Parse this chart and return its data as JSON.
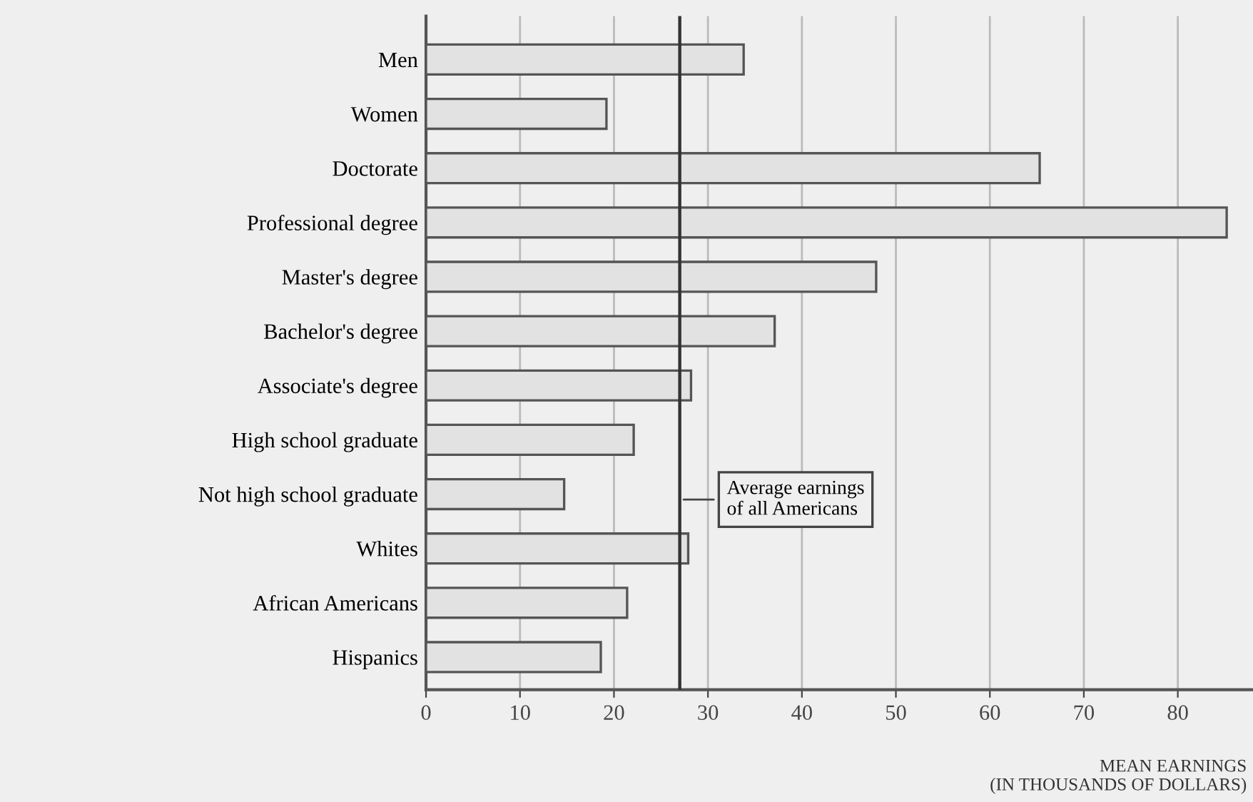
{
  "chart_data": {
    "type": "bar",
    "orientation": "horizontal",
    "xlabel": "MEAN EARNINGS\n(IN THOUSANDS OF DOLLARS)",
    "categories": [
      "Men",
      "Women",
      "Doctorate",
      "Professional degree",
      "Master's degree",
      "Bachelor's degree",
      "Associate's degree",
      "High school graduate",
      "Not high school graduate",
      "Whites",
      "African Americans",
      "Hispanics"
    ],
    "values": [
      33.8,
      19.2,
      65.3,
      85.2,
      47.9,
      37.1,
      28.2,
      22.1,
      14.7,
      27.9,
      21.4,
      18.6
    ],
    "color": "#e2e2e2",
    "xlim": [
      0,
      88
    ],
    "xticks": [
      0,
      10,
      20,
      30,
      40,
      50,
      60,
      70,
      80
    ],
    "grid": "x",
    "ref_lines": [
      {
        "axis": "x",
        "value": 27,
        "label": "Average earnings\nof all Americans",
        "color": "#333333"
      }
    ]
  }
}
